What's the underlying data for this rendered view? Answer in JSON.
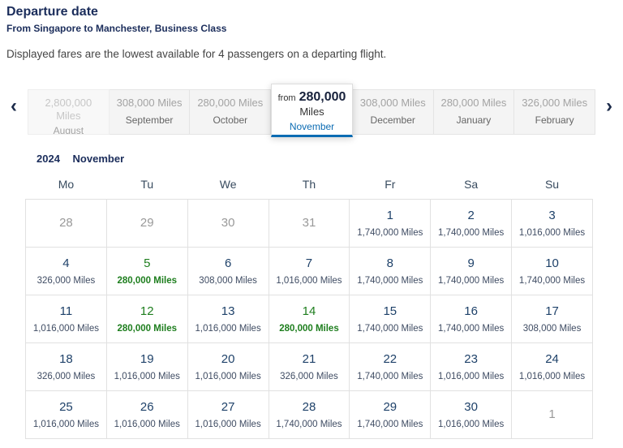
{
  "header": {
    "title": "Departure date",
    "route": "From Singapore to Manchester, Business Class",
    "description": "Displayed fares are the lowest available for 4 passengers on a departing flight."
  },
  "icons": {
    "prev": "‹",
    "next": "›"
  },
  "carousel": {
    "months": [
      {
        "name": "August",
        "price": "2,800,000 Miles",
        "state": "faded"
      },
      {
        "name": "September",
        "price": "308,000 Miles",
        "state": "normal"
      },
      {
        "name": "October",
        "price": "280,000 Miles",
        "state": "normal"
      },
      {
        "name": "November",
        "from_label": "from",
        "price": "280,000",
        "unit": "Miles",
        "state": "selected"
      },
      {
        "name": "December",
        "price": "308,000 Miles",
        "state": "normal"
      },
      {
        "name": "January",
        "price": "280,000 Miles",
        "state": "normal"
      },
      {
        "name": "February",
        "price": "326,000 Miles",
        "state": "normal"
      }
    ]
  },
  "calendar": {
    "year": "2024",
    "month": "November",
    "day_headers": [
      "Mo",
      "Tu",
      "We",
      "Th",
      "Fr",
      "Sa",
      "Su"
    ],
    "weeks": [
      [
        {
          "day": "28",
          "muted": true
        },
        {
          "day": "29",
          "muted": true
        },
        {
          "day": "30",
          "muted": true
        },
        {
          "day": "31",
          "muted": true
        },
        {
          "day": "1",
          "miles": "1,740,000 Miles"
        },
        {
          "day": "2",
          "miles": "1,740,000 Miles"
        },
        {
          "day": "3",
          "miles": "1,016,000 Miles"
        }
      ],
      [
        {
          "day": "4",
          "miles": "326,000 Miles"
        },
        {
          "day": "5",
          "miles": "280,000 Miles",
          "best": true
        },
        {
          "day": "6",
          "miles": "308,000 Miles"
        },
        {
          "day": "7",
          "miles": "1,016,000 Miles"
        },
        {
          "day": "8",
          "miles": "1,740,000 Miles"
        },
        {
          "day": "9",
          "miles": "1,740,000 Miles"
        },
        {
          "day": "10",
          "miles": "1,740,000 Miles"
        }
      ],
      [
        {
          "day": "11",
          "miles": "1,016,000 Miles"
        },
        {
          "day": "12",
          "miles": "280,000 Miles",
          "best": true
        },
        {
          "day": "13",
          "miles": "1,016,000 Miles"
        },
        {
          "day": "14",
          "miles": "280,000 Miles",
          "best": true
        },
        {
          "day": "15",
          "miles": "1,740,000 Miles"
        },
        {
          "day": "16",
          "miles": "1,740,000 Miles"
        },
        {
          "day": "17",
          "miles": "308,000 Miles"
        }
      ],
      [
        {
          "day": "18",
          "miles": "326,000 Miles"
        },
        {
          "day": "19",
          "miles": "1,016,000 Miles"
        },
        {
          "day": "20",
          "miles": "1,016,000 Miles"
        },
        {
          "day": "21",
          "miles": "326,000 Miles"
        },
        {
          "day": "22",
          "miles": "1,740,000 Miles"
        },
        {
          "day": "23",
          "miles": "1,016,000 Miles"
        },
        {
          "day": "24",
          "miles": "1,016,000 Miles"
        }
      ],
      [
        {
          "day": "25",
          "miles": "1,016,000 Miles"
        },
        {
          "day": "26",
          "miles": "1,016,000 Miles"
        },
        {
          "day": "27",
          "miles": "1,016,000 Miles"
        },
        {
          "day": "28",
          "miles": "1,740,000 Miles"
        },
        {
          "day": "29",
          "miles": "1,740,000 Miles"
        },
        {
          "day": "30",
          "miles": "1,016,000 Miles"
        },
        {
          "day": "1",
          "muted": true
        }
      ]
    ]
  }
}
